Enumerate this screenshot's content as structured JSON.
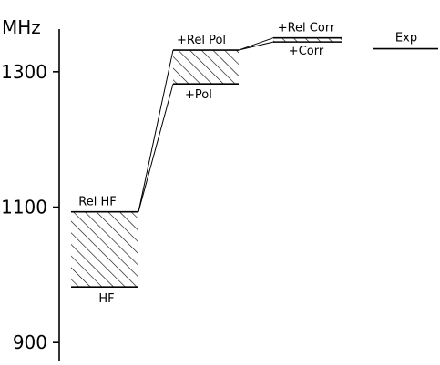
{
  "chart_data": {
    "type": "level-diagram",
    "title": "",
    "ylabel": "MHz",
    "xlabel": "",
    "ylim": [
      872,
      1363
    ],
    "yticks": [
      900,
      1100,
      1300
    ],
    "ytick_labels": [
      "900",
      "1100",
      "1300"
    ],
    "levels": [
      {
        "label": "HF",
        "value": 982
      },
      {
        "label": "Rel HF",
        "value": 1093
      },
      {
        "label": "+Pol",
        "value": 1282
      },
      {
        "label": "+Rel Pol",
        "value": 1332
      },
      {
        "label": "+Corr",
        "value": 1344
      },
      {
        "label": "+Rel Corr",
        "value": 1350
      },
      {
        "label": "Exp",
        "value": 1334
      }
    ],
    "hatched_bands": [
      {
        "between": [
          "HF",
          "Rel HF"
        ]
      },
      {
        "between": [
          "+Pol",
          "+Rel Pol"
        ]
      },
      {
        "between": [
          "+Corr",
          "+Rel Corr"
        ]
      }
    ]
  }
}
